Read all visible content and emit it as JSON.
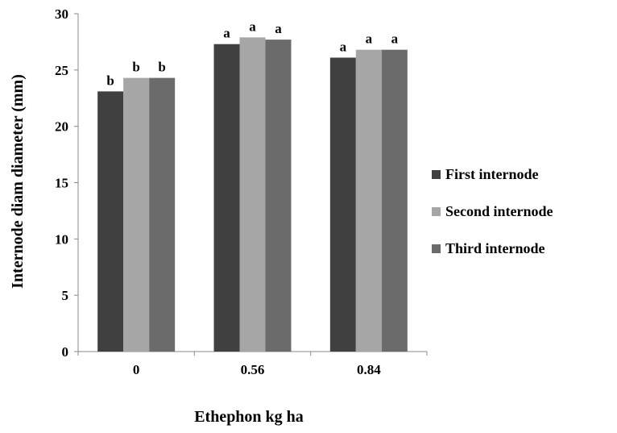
{
  "chart_data": {
    "type": "bar",
    "title": "",
    "xlabel": "Ethephon kg ha",
    "ylabel": "Internode diam diameter (mm)",
    "categories": [
      "0",
      "0.56",
      "0.84"
    ],
    "series": [
      {
        "name": "First internode",
        "color": "#404040",
        "values": [
          23.1,
          27.3,
          26.1
        ],
        "labels": [
          "b",
          "a",
          "a"
        ]
      },
      {
        "name": "Second  internode",
        "color": "#a6a6a6",
        "values": [
          24.3,
          27.9,
          26.8
        ],
        "labels": [
          "b",
          "a",
          "a"
        ]
      },
      {
        "name": "Third  internode",
        "color": "#6b6b6b",
        "values": [
          24.3,
          27.7,
          26.8
        ],
        "labels": [
          "b",
          "a",
          "a"
        ]
      }
    ],
    "ylim": [
      0,
      30
    ],
    "yticks": [
      0,
      5,
      10,
      15,
      20,
      25,
      30
    ],
    "grid": false,
    "legend_position": "right"
  }
}
